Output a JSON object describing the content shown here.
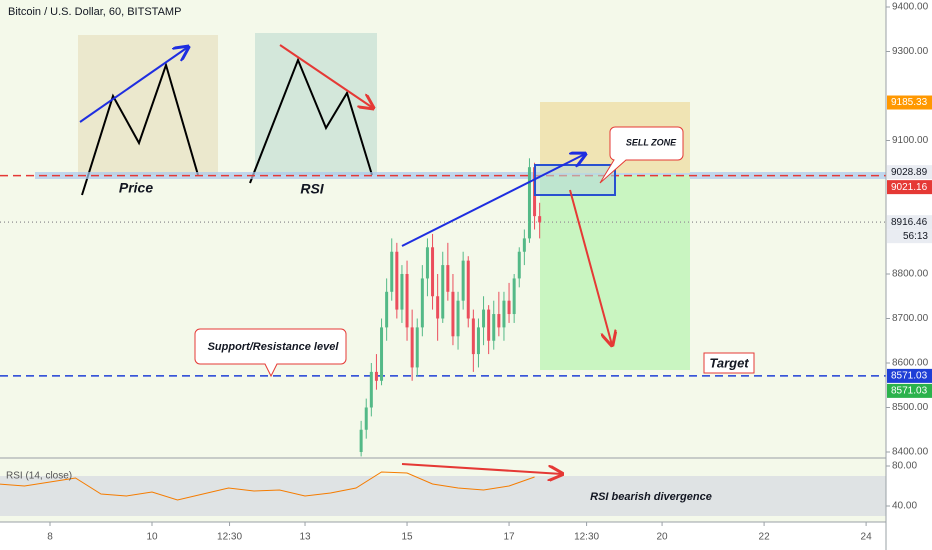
{
  "chart_data": {
    "type": "candlestick",
    "title": "Bitcoin / U.S. Dollar, 60, BITSTAMP",
    "x": [
      14.1,
      14.2,
      14.3,
      14.4,
      14.5,
      14.6,
      14.7,
      14.8,
      14.9,
      15.0,
      15.1,
      15.2,
      15.3,
      15.4,
      15.5,
      15.6,
      15.7,
      15.8,
      15.9,
      16.0,
      16.1,
      16.2,
      16.3,
      16.4,
      16.5,
      16.6,
      16.7,
      16.8,
      16.9,
      17.0,
      17.1,
      17.2,
      17.3,
      17.4,
      17.5,
      17.6
    ],
    "open": [
      8400,
      8450,
      8500,
      8580,
      8560,
      8680,
      8760,
      8850,
      8720,
      8800,
      8680,
      8590,
      8680,
      8790,
      8860,
      8750,
      8700,
      8820,
      8760,
      8660,
      8740,
      8830,
      8700,
      8620,
      8680,
      8720,
      8650,
      8710,
      8680,
      8740,
      8710,
      8790,
      8850,
      8880,
      9040,
      8930
    ],
    "high": [
      8470,
      8520,
      8600,
      8620,
      8700,
      8790,
      8880,
      8870,
      8820,
      8830,
      8720,
      8700,
      8820,
      8880,
      8890,
      8800,
      8850,
      8870,
      8800,
      8760,
      8850,
      8840,
      8720,
      8700,
      8750,
      8730,
      8740,
      8760,
      8760,
      8780,
      8800,
      8860,
      8900,
      9060,
      9050,
      8960
    ],
    "low": [
      8390,
      8430,
      8480,
      8540,
      8550,
      8650,
      8740,
      8700,
      8690,
      8650,
      8560,
      8570,
      8660,
      8750,
      8720,
      8650,
      8690,
      8740,
      8640,
      8630,
      8720,
      8680,
      8580,
      8590,
      8640,
      8620,
      8630,
      8660,
      8650,
      8690,
      8690,
      8770,
      8820,
      8870,
      8900,
      8880
    ],
    "close": [
      8450,
      8500,
      8580,
      8560,
      8680,
      8760,
      8850,
      8720,
      8800,
      8680,
      8590,
      8680,
      8790,
      8860,
      8750,
      8700,
      8820,
      8760,
      8660,
      8740,
      8830,
      8700,
      8620,
      8680,
      8720,
      8650,
      8710,
      8680,
      8740,
      8710,
      8790,
      8850,
      8880,
      9040,
      8930,
      8916
    ],
    "up_color": "#53b987",
    "down_color": "#eb4d5c",
    "xlim": [
      7.02,
      24.39
    ],
    "xticks": [
      8,
      10,
      {
        "value": 11.52,
        "label": "12:30"
      },
      13,
      15,
      17,
      {
        "value": 18.52,
        "label": "12:30"
      },
      20,
      22,
      24
    ],
    "ylim": [
      8386.5,
      9415.7
    ],
    "yticks": [
      {
        "value": 9400,
        "label": "9400.00"
      },
      {
        "value": 9300,
        "label": "9300.00"
      },
      {
        "value": 9100,
        "label": "9100.00"
      },
      {
        "value": 8800,
        "label": "8800.00"
      },
      {
        "value": 8700,
        "label": "8700.00"
      },
      {
        "value": 8600,
        "label": "8600.00"
      },
      {
        "value": 8500,
        "label": "8500.00"
      },
      {
        "value": 8400,
        "label": "8400.00"
      }
    ],
    "price_lines": [
      {
        "value": 9021.16,
        "color": "#e53935",
        "dash": "8,5"
      },
      {
        "value": 8916.46,
        "color": "#9e9e9e",
        "dash": "1,3"
      },
      {
        "value": 8571.03,
        "color": "#1e3fd6",
        "dash": "8,5"
      }
    ],
    "price_labels": [
      {
        "value": 9185.33,
        "color": "#ff9800",
        "text_color": "#ffffff"
      },
      {
        "value": 9028.89,
        "color": "#e9ecf2",
        "text_color": "#131722"
      },
      {
        "value": 9021.16,
        "color": "#e53935",
        "text_color": "#ffffff"
      },
      {
        "value": 8916.46,
        "color": "#e9ecf2",
        "text_color": "#131722"
      },
      {
        "value": 8571.03,
        "color": "#1e3fd6",
        "text_color": "#ffffff"
      },
      {
        "value": 8571.03,
        "color": "#2bb24c",
        "text_color": "#ffffff"
      }
    ],
    "countdown": "56:13",
    "annotations": {
      "price": "Price",
      "rsi": "RSI",
      "sell_zone": "SELL ZONE",
      "support": "Support/Resistance level",
      "target": "Target",
      "divergence": "RSI bearish divergence"
    },
    "rsi": {
      "name": "RSI (14, close)",
      "color": "#f57c00",
      "x": [
        7.0,
        7.5,
        8.0,
        8.5,
        9.0,
        9.5,
        10.0,
        10.5,
        11.0,
        11.5,
        12.0,
        12.5,
        13.0,
        13.5,
        14.0,
        14.5,
        15.0,
        15.5,
        16.0,
        16.5,
        17.0,
        17.5
      ],
      "values": [
        62,
        60,
        64,
        68,
        52,
        50,
        54,
        46,
        52,
        58,
        55,
        56,
        50,
        53,
        58,
        74,
        73,
        62,
        58,
        56,
        60,
        69
      ],
      "ylim": [
        24,
        88
      ],
      "yticks": [
        {
          "value": 80,
          "label": "80.00"
        },
        {
          "value": 40,
          "label": "40.00"
        }
      ],
      "band": [
        30,
        70
      ]
    }
  }
}
